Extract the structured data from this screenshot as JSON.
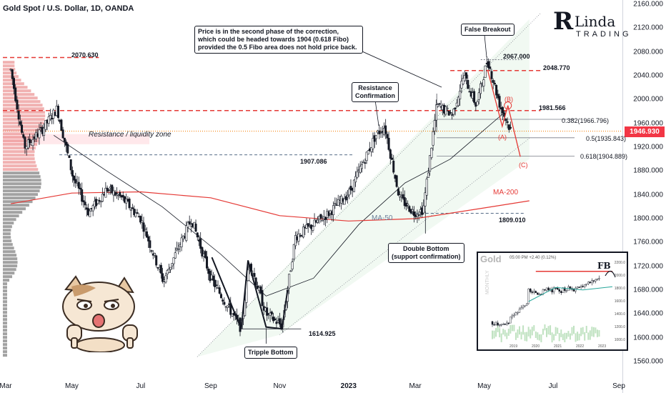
{
  "header": {
    "title": "Gold Spot / U.S. Dollar, 1D, OANDA"
  },
  "price_axis": [
    "2160.000",
    "2120.000",
    "2080.000",
    "2040.000",
    "2000.000",
    "1960.000",
    "1920.000",
    "1880.000",
    "1840.000",
    "1800.000",
    "1760.000",
    "1720.000",
    "1680.000",
    "1640.000",
    "1600.000",
    "1560.000"
  ],
  "current_price": "1946.930",
  "time_axis": [
    {
      "label": "Mar",
      "bold": false
    },
    {
      "label": "May",
      "bold": false
    },
    {
      "label": "Jul",
      "bold": false
    },
    {
      "label": "Sep",
      "bold": false
    },
    {
      "label": "Nov",
      "bold": false
    },
    {
      "label": "2023",
      "bold": true
    },
    {
      "label": "Mar",
      "bold": false
    },
    {
      "label": "May",
      "bold": false
    },
    {
      "label": "Jul",
      "bold": false
    },
    {
      "label": "Sep",
      "bold": false
    }
  ],
  "annotations": {
    "level_2070": "2070.630",
    "level_2067": "2067.000",
    "level_2048": "2048.770",
    "level_1981": "1981.566",
    "fib_382": "0.382(1966.796)",
    "fib_5": "0.5(1935.843)",
    "fib_618": "0.618(1904.889)",
    "level_1907": "1907.086",
    "level_1809": "1809.010",
    "level_1614": "1614.925",
    "resistance_zone": "Resistance / liquidity zone",
    "ma50": "MA-50",
    "ma200": "MA-200",
    "wave_a": "(A)",
    "wave_b": "(B)",
    "wave_c": "(C)",
    "callout_line1": "Price is in the second phase of the correction,",
    "callout_line2": "which could be headed towards 1904 (0.618 Fibo)",
    "callout_line3": "provided the 0.5 Fibo area does not hold price back.",
    "false_breakout": "False Breakout",
    "resistance_conf_1": "Resistance",
    "resistance_conf_2": "Confirmation",
    "double_bottom_1": "Double Bottom",
    "double_bottom_2": "(support confirmation)",
    "tripple_bottom": "Tripple Bottom"
  },
  "logo": {
    "letter": "R",
    "line1": "Linda",
    "line2": "TRADING"
  },
  "inset": {
    "title": "Gold",
    "subtitle": "05:00 PM  +2.40 (0.12%)",
    "timeframe": "MONTHLY",
    "fb_label": "FB",
    "y_labels": [
      "2200.0",
      "2000.0",
      "1800.0",
      "1600.0",
      "1400.0",
      "1200.0",
      "1000.0"
    ],
    "x_labels": [
      "2019",
      "2020",
      "2021",
      "2022",
      "2023"
    ]
  },
  "colors": {
    "bull": "#ffffff",
    "bear": "#131722",
    "resistance": "#e53935",
    "ma200": "#e53935",
    "ma50": "#131722",
    "price_tag": "#f23645"
  },
  "chart_data": {
    "type": "line",
    "title": "Gold Spot / U.S. Dollar, 1D, OANDA",
    "ylim": [
      1545,
      2170
    ],
    "x_range": [
      "2022-03",
      "2023-09"
    ],
    "series": [
      {
        "name": "",
        "x": [
          "2022-03-08",
          "2022-03-20",
          "2022-04-05",
          "2022-04-18",
          "2022-05-02",
          "2022-05-16",
          "2022-06-01",
          "2022-06-14",
          "2022-07-01",
          "2022-07-21",
          "2022-08-15",
          "2022-09-01",
          "2022-09-28",
          "2022-10-05",
          "2022-10-20",
          "2022-11-03",
          "2022-11-15",
          "2022-12-01",
          "2022-12-15",
          "2023-01-02",
          "2023-01-25",
          "2023-02-02",
          "2023-02-15",
          "2023-02-28",
          "2023-03-08",
          "2023-03-20",
          "2023-04-03",
          "2023-04-13",
          "2023-04-24",
          "2023-05-04",
          "2023-05-15",
          "2023-05-25"
        ],
        "values": [
          2050,
          1920,
          1950,
          1985,
          1870,
          1810,
          1850,
          1835,
          1800,
          1695,
          1800,
          1700,
          1615,
          1730,
          1640,
          1620,
          1770,
          1790,
          1810,
          1845,
          1940,
          1955,
          1835,
          1810,
          1815,
          1990,
          1975,
          2040,
          1990,
          2067,
          1990,
          1946
        ]
      },
      {
        "name": "MA-50",
        "x": [
          "2022-04-15",
          "2022-06-01",
          "2022-07-20",
          "2022-09-10",
          "2022-10-20",
          "2022-12-01",
          "2023-01-10",
          "2023-02-20",
          "2023-04-01",
          "2023-05-20"
        ],
        "values": [
          1940,
          1880,
          1820,
          1740,
          1670,
          1700,
          1790,
          1860,
          1900,
          1980
        ]
      },
      {
        "name": "MA-200",
        "x": [
          "2022-03-08",
          "2022-05-01",
          "2022-07-01",
          "2022-09-01",
          "2022-11-01",
          "2023-01-01",
          "2023-03-01",
          "2023-05-01",
          "2023-06-10"
        ],
        "values": [
          1825,
          1843,
          1845,
          1835,
          1805,
          1796,
          1800,
          1818,
          1830
        ]
      }
    ],
    "horizontal_levels": [
      2070.63,
      2067.0,
      2048.77,
      1981.566,
      1966.796,
      1935.843,
      1904.889,
      1907.086,
      1809.01,
      1614.925
    ]
  }
}
